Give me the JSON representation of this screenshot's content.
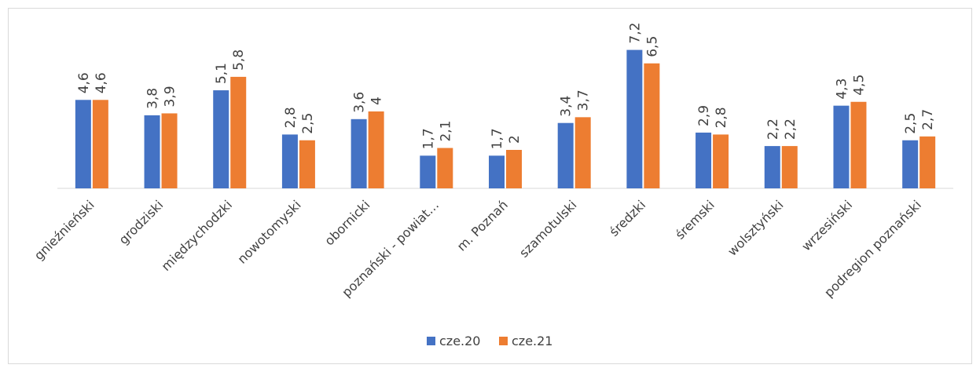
{
  "chart_data": {
    "type": "bar",
    "title": "",
    "xlabel": "",
    "ylabel": "",
    "ylim": [
      0,
      7.6
    ],
    "grid": false,
    "legend_position": "bottom",
    "categories": [
      "gnieźnieński",
      "grodziski",
      "międzychodzki",
      "nowotomyski",
      "obornicki",
      "poznański - powiat…",
      "m. Poznań",
      "szamotulski",
      "średzki",
      "śremski",
      "wolsztyński",
      "wrzesiński",
      "podregion poznański"
    ],
    "series": [
      {
        "name": "cze.20",
        "color": "#4472c4",
        "values": [
          4.6,
          3.8,
          5.1,
          2.8,
          3.6,
          1.7,
          1.7,
          3.4,
          7.2,
          2.9,
          2.2,
          4.3,
          2.5
        ],
        "labels": [
          "4,6",
          "3,8",
          "5,1",
          "2,8",
          "3,6",
          "1,7",
          "1,7",
          "3,4",
          "7,2",
          "2,9",
          "2,2",
          "4,3",
          "2,5"
        ]
      },
      {
        "name": "cze.21",
        "color": "#ed7d31",
        "values": [
          4.6,
          3.9,
          5.8,
          2.5,
          4.0,
          2.1,
          2.0,
          3.7,
          6.5,
          2.8,
          2.2,
          4.5,
          2.7
        ],
        "labels": [
          "4,6",
          "3,9",
          "5,8",
          "2,5",
          "4",
          "2,1",
          "2",
          "3,7",
          "6,5",
          "2,8",
          "2,2",
          "4,5",
          "2,7"
        ]
      }
    ]
  }
}
